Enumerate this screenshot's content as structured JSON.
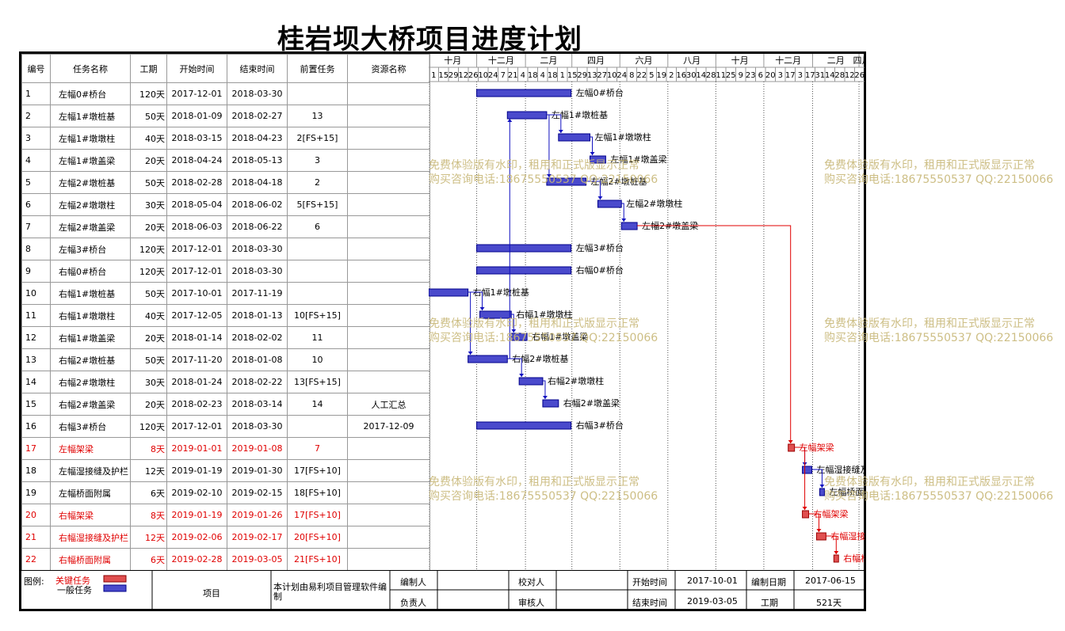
{
  "title": "桂岩坝大桥项目进度计划",
  "headers": {
    "id": "编号",
    "name": "任务名称",
    "dur": "工期",
    "start": "开始时间",
    "end": "结束时间",
    "pred": "前置任务",
    "res": "资源名称"
  },
  "timeline": {
    "months": [
      "十月",
      "十二月",
      "二月",
      "四月",
      "六月",
      "八月",
      "十月",
      "十二月",
      "二月",
      "四月"
    ],
    "days": [
      "1",
      "15",
      "29",
      "12",
      "26",
      "10",
      "24",
      "7",
      "21",
      "4",
      "18",
      "4",
      "18",
      "1",
      "15",
      "29",
      "13",
      "27",
      "10",
      "24",
      "8",
      "22",
      "5",
      "19",
      "2",
      "16",
      "30",
      "14",
      "28",
      "11",
      "25",
      "9",
      "23",
      "6",
      "20",
      "3",
      "17",
      "3",
      "17",
      "31",
      "14",
      "28",
      "12",
      "26"
    ]
  },
  "tasks": [
    {
      "id": "1",
      "name": "左幅0#桥台",
      "dur": "120天",
      "start": "2017-12-01",
      "end": "2018-03-30",
      "pred": "",
      "res": "",
      "critical": false
    },
    {
      "id": "2",
      "name": "左幅1#墩桩基",
      "dur": "50天",
      "start": "2018-01-09",
      "end": "2018-02-27",
      "pred": "13",
      "res": "",
      "critical": false
    },
    {
      "id": "3",
      "name": "左幅1#墩墩柱",
      "dur": "40天",
      "start": "2018-03-15",
      "end": "2018-04-23",
      "pred": "2[FS+15]",
      "res": "",
      "critical": false
    },
    {
      "id": "4",
      "name": "左幅1#墩盖梁",
      "dur": "20天",
      "start": "2018-04-24",
      "end": "2018-05-13",
      "pred": "3",
      "res": "",
      "critical": false
    },
    {
      "id": "5",
      "name": "左幅2#墩桩基",
      "dur": "50天",
      "start": "2018-02-28",
      "end": "2018-04-18",
      "pred": "2",
      "res": "",
      "critical": false
    },
    {
      "id": "6",
      "name": "左幅2#墩墩柱",
      "dur": "30天",
      "start": "2018-05-04",
      "end": "2018-06-02",
      "pred": "5[FS+15]",
      "res": "",
      "critical": false
    },
    {
      "id": "7",
      "name": "左幅2#墩盖梁",
      "dur": "20天",
      "start": "2018-06-03",
      "end": "2018-06-22",
      "pred": "6",
      "res": "",
      "critical": false
    },
    {
      "id": "8",
      "name": "左幅3#桥台",
      "dur": "120天",
      "start": "2017-12-01",
      "end": "2018-03-30",
      "pred": "",
      "res": "",
      "critical": false
    },
    {
      "id": "9",
      "name": "右幅0#桥台",
      "dur": "120天",
      "start": "2017-12-01",
      "end": "2018-03-30",
      "pred": "",
      "res": "",
      "critical": false
    },
    {
      "id": "10",
      "name": "右幅1#墩桩基",
      "dur": "50天",
      "start": "2017-10-01",
      "end": "2017-11-19",
      "pred": "",
      "res": "",
      "critical": false
    },
    {
      "id": "11",
      "name": "右幅1#墩墩柱",
      "dur": "40天",
      "start": "2017-12-05",
      "end": "2018-01-13",
      "pred": "10[FS+15]",
      "res": "",
      "critical": false
    },
    {
      "id": "12",
      "name": "右幅1#墩盖梁",
      "dur": "20天",
      "start": "2018-01-14",
      "end": "2018-02-02",
      "pred": "11",
      "res": "",
      "critical": false
    },
    {
      "id": "13",
      "name": "右幅2#墩桩基",
      "dur": "50天",
      "start": "2017-11-20",
      "end": "2018-01-08",
      "pred": "10",
      "res": "",
      "critical": false
    },
    {
      "id": "14",
      "name": "右幅2#墩墩柱",
      "dur": "30天",
      "start": "2018-01-24",
      "end": "2018-02-22",
      "pred": "13[FS+15]",
      "res": "",
      "critical": false
    },
    {
      "id": "15",
      "name": "右幅2#墩盖梁",
      "dur": "20天",
      "start": "2018-02-23",
      "end": "2018-03-14",
      "pred": "14",
      "res": "人工汇总",
      "critical": false
    },
    {
      "id": "16",
      "name": "右幅3#桥台",
      "dur": "120天",
      "start": "2017-12-01",
      "end": "2018-03-30",
      "pred": "",
      "res": "2017-12-09",
      "critical": false
    },
    {
      "id": "17",
      "name": "左幅架梁",
      "dur": "8天",
      "start": "2019-01-01",
      "end": "2019-01-08",
      "pred": "7",
      "res": "",
      "critical": true
    },
    {
      "id": "18",
      "name": "左幅湿接缝及护栏",
      "dur": "12天",
      "start": "2019-01-19",
      "end": "2019-01-30",
      "pred": "17[FS+10]",
      "res": "",
      "critical": false
    },
    {
      "id": "19",
      "name": "左幅桥面附属",
      "dur": "6天",
      "start": "2019-02-10",
      "end": "2019-02-15",
      "pred": "18[FS+10]",
      "res": "",
      "critical": false
    },
    {
      "id": "20",
      "name": "右幅架梁",
      "dur": "8天",
      "start": "2019-01-19",
      "end": "2019-01-26",
      "pred": "17[FS+10]",
      "res": "",
      "critical": true
    },
    {
      "id": "21",
      "name": "右幅湿接缝及护栏",
      "dur": "12天",
      "start": "2019-02-06",
      "end": "2019-02-17",
      "pred": "20[FS+10]",
      "res": "",
      "critical": true
    },
    {
      "id": "22",
      "name": "右幅桥面附属",
      "dur": "6天",
      "start": "2019-02-28",
      "end": "2019-03-05",
      "pred": "21[FS+10]",
      "res": "",
      "critical": true
    }
  ],
  "watermark": {
    "line1": "免费体验版有水印，租用和正式版显示正常",
    "line2": "购买咨询电话:18675550537 QQ:22150066"
  },
  "footer": {
    "legend_label": "图例:",
    "critical_label": "关键任务",
    "normal_label": "一般任务",
    "project_label": "项目",
    "software_note": "本计划由易利项目管理软件编制",
    "editor_label": "编制人",
    "owner_label": "负责人",
    "proof_label": "校对人",
    "review_label": "审核人",
    "start_label": "开始时间",
    "start_value": "2017-10-01",
    "end_label": "结束时间",
    "end_value": "2019-03-05",
    "date_label": "编制日期",
    "date_value": "2017-06-15",
    "dur_label": "工期",
    "dur_value": "521天"
  },
  "colors": {
    "normal_bar": "#4a4acc",
    "critical_bar": "#e05050",
    "link": "#1010c0",
    "critical_link": "#e00000"
  }
}
